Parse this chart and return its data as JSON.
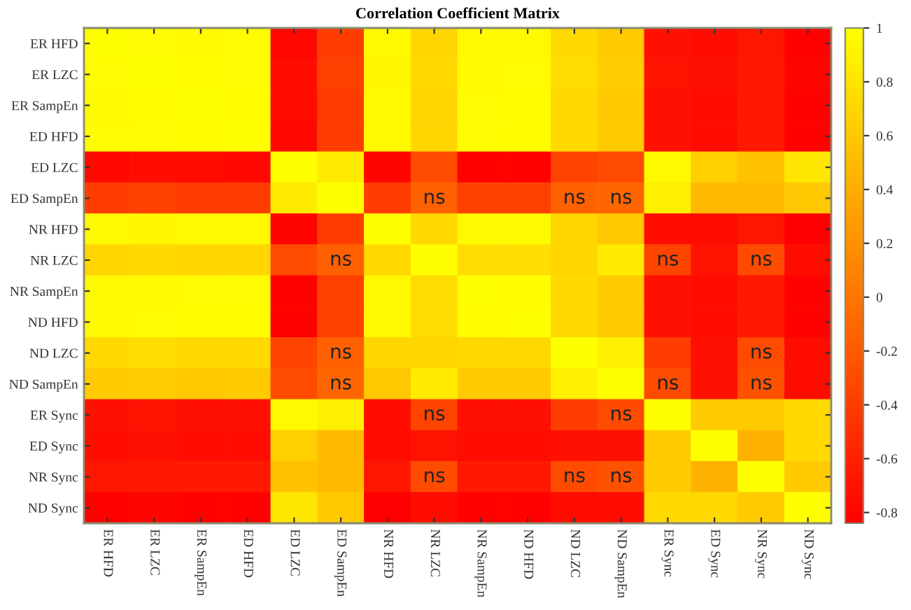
{
  "chart_data": {
    "type": "heatmap",
    "title": "Correlation Coefficient Matrix",
    "categories": [
      "ER HFD",
      "ER LZC",
      "ER SampEn",
      "ED HFD",
      "ED LZC",
      "ED SampEn",
      "NR HFD",
      "NR LZC",
      "NR SampEn",
      "ND HFD",
      "ND LZC",
      "ND SampEn",
      "ER Sync",
      "ED Sync",
      "NR Sync",
      "ND Sync"
    ],
    "y_categories": [
      "ER HFD",
      "ER LZC",
      "ER SampEn",
      "ED HFD",
      "ED LZC",
      "ED SampEn",
      "NR HFD",
      "NR LZC",
      "NR SampEn",
      "ND HFD",
      "ND LZC",
      "ND SampEn",
      "ER Sync",
      "ED Sync",
      "NR Sync",
      "ND Sync"
    ],
    "cells": [
      [
        1,
        0.97,
        0.96,
        0.97,
        -0.78,
        -0.4,
        0.95,
        0.7,
        0.95,
        0.95,
        0.72,
        0.62,
        -0.72,
        -0.74,
        -0.68,
        -0.82
      ],
      [
        0.97,
        1,
        0.98,
        0.97,
        -0.74,
        -0.38,
        0.93,
        0.72,
        0.96,
        0.97,
        0.75,
        0.64,
        -0.7,
        -0.72,
        -0.66,
        -0.8
      ],
      [
        0.96,
        0.98,
        1,
        0.98,
        -0.76,
        -0.4,
        0.95,
        0.7,
        0.97,
        0.98,
        0.72,
        0.6,
        -0.72,
        -0.74,
        -0.66,
        -0.82
      ],
      [
        0.97,
        0.97,
        0.98,
        1,
        -0.78,
        -0.4,
        0.95,
        0.7,
        0.97,
        0.98,
        0.72,
        0.62,
        -0.72,
        -0.74,
        -0.66,
        -0.82
      ],
      [
        -0.78,
        -0.74,
        -0.76,
        -0.78,
        1,
        0.85,
        -0.8,
        -0.3,
        -0.82,
        -0.82,
        -0.35,
        -0.3,
        0.95,
        0.65,
        0.55,
        0.82
      ],
      [
        -0.4,
        -0.38,
        -0.4,
        -0.4,
        0.85,
        1,
        -0.4,
        -0.15,
        -0.38,
        -0.38,
        -0.15,
        -0.1,
        0.88,
        0.5,
        0.5,
        0.6
      ],
      [
        0.95,
        0.93,
        0.95,
        0.95,
        -0.8,
        -0.4,
        1,
        0.72,
        0.95,
        0.95,
        0.7,
        0.6,
        -0.75,
        -0.75,
        -0.68,
        -0.84
      ],
      [
        0.7,
        0.72,
        0.7,
        0.7,
        -0.3,
        -0.15,
        0.72,
        1,
        0.75,
        0.75,
        0.7,
        0.85,
        -0.35,
        -0.7,
        -0.3,
        -0.75
      ],
      [
        0.95,
        0.96,
        0.97,
        0.97,
        -0.82,
        -0.38,
        0.95,
        0.75,
        1,
        0.98,
        0.72,
        0.62,
        -0.72,
        -0.74,
        -0.66,
        -0.82
      ],
      [
        0.95,
        0.97,
        0.98,
        0.98,
        -0.82,
        -0.38,
        0.95,
        0.75,
        0.98,
        1,
        0.72,
        0.62,
        -0.72,
        -0.74,
        -0.66,
        -0.82
      ],
      [
        0.72,
        0.75,
        0.72,
        0.72,
        -0.35,
        -0.15,
        0.7,
        0.7,
        0.72,
        0.72,
        1,
        0.88,
        -0.4,
        -0.72,
        -0.3,
        -0.75
      ],
      [
        0.62,
        0.64,
        0.6,
        0.62,
        -0.3,
        -0.1,
        0.6,
        0.85,
        0.62,
        0.62,
        0.88,
        1,
        -0.3,
        -0.72,
        -0.25,
        -0.75
      ],
      [
        -0.72,
        -0.7,
        -0.72,
        -0.72,
        0.95,
        0.88,
        -0.75,
        -0.35,
        -0.72,
        -0.72,
        -0.4,
        -0.3,
        1,
        0.62,
        0.62,
        0.72
      ],
      [
        -0.74,
        -0.72,
        -0.74,
        -0.74,
        0.65,
        0.5,
        -0.75,
        -0.7,
        -0.74,
        -0.74,
        -0.72,
        -0.72,
        0.62,
        1,
        0.45,
        0.72
      ],
      [
        -0.68,
        -0.66,
        -0.66,
        -0.66,
        0.55,
        0.5,
        -0.68,
        -0.3,
        -0.66,
        -0.66,
        -0.3,
        -0.25,
        0.62,
        0.45,
        1,
        0.62
      ],
      [
        -0.82,
        -0.8,
        -0.82,
        -0.82,
        0.82,
        0.6,
        -0.84,
        -0.75,
        -0.82,
        -0.82,
        -0.75,
        -0.75,
        0.72,
        0.72,
        0.62,
        1
      ]
    ],
    "cell_labels": [
      [
        null,
        null,
        null,
        null,
        null,
        null,
        null,
        null,
        null,
        null,
        null,
        null,
        null,
        null,
        null,
        null
      ],
      [
        null,
        null,
        null,
        null,
        null,
        null,
        null,
        null,
        null,
        null,
        null,
        null,
        null,
        null,
        null,
        null
      ],
      [
        null,
        null,
        null,
        null,
        null,
        null,
        null,
        null,
        null,
        null,
        null,
        null,
        null,
        null,
        null,
        null
      ],
      [
        null,
        null,
        null,
        null,
        null,
        null,
        null,
        null,
        null,
        null,
        null,
        null,
        null,
        null,
        null,
        null
      ],
      [
        null,
        null,
        null,
        null,
        null,
        null,
        null,
        null,
        null,
        null,
        null,
        null,
        null,
        null,
        null,
        null
      ],
      [
        null,
        null,
        null,
        null,
        null,
        null,
        null,
        "ns",
        null,
        null,
        "ns",
        "ns",
        null,
        null,
        null,
        null
      ],
      [
        null,
        null,
        null,
        null,
        null,
        null,
        null,
        null,
        null,
        null,
        null,
        null,
        null,
        null,
        null,
        null
      ],
      [
        null,
        null,
        null,
        null,
        null,
        "ns",
        null,
        null,
        null,
        null,
        null,
        null,
        "ns",
        null,
        "ns",
        null
      ],
      [
        null,
        null,
        null,
        null,
        null,
        null,
        null,
        null,
        null,
        null,
        null,
        null,
        null,
        null,
        null,
        null
      ],
      [
        null,
        null,
        null,
        null,
        null,
        null,
        null,
        null,
        null,
        null,
        null,
        null,
        null,
        null,
        null,
        null
      ],
      [
        null,
        null,
        null,
        null,
        null,
        "ns",
        null,
        null,
        null,
        null,
        null,
        null,
        null,
        null,
        "ns",
        null
      ],
      [
        null,
        null,
        null,
        null,
        null,
        "ns",
        null,
        null,
        null,
        null,
        null,
        null,
        "ns",
        null,
        "ns",
        null
      ],
      [
        null,
        null,
        null,
        null,
        null,
        null,
        null,
        "ns",
        null,
        null,
        null,
        "ns",
        null,
        null,
        null,
        null
      ],
      [
        null,
        null,
        null,
        null,
        null,
        null,
        null,
        null,
        null,
        null,
        null,
        null,
        null,
        null,
        null,
        null
      ],
      [
        null,
        null,
        null,
        null,
        null,
        null,
        null,
        "ns",
        null,
        null,
        "ns",
        "ns",
        null,
        null,
        null,
        null
      ],
      [
        null,
        null,
        null,
        null,
        null,
        null,
        null,
        null,
        null,
        null,
        null,
        null,
        null,
        null,
        null,
        null
      ]
    ],
    "clim": [
      -0.84,
      1
    ],
    "cticks": [
      1,
      0.8,
      0.6,
      0.4,
      0.2,
      0,
      -0.2,
      -0.4,
      -0.6,
      -0.8
    ]
  }
}
